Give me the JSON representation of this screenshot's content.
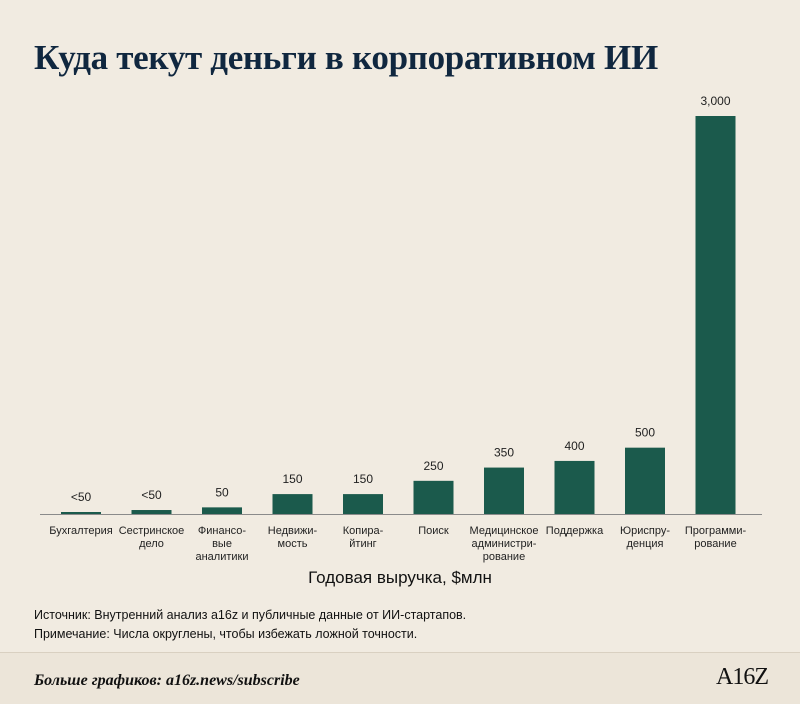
{
  "chart_data": {
    "type": "bar",
    "title": "Куда текут деньги в корпоративном ИИ",
    "xlabel": "Годовая выручка, $млн",
    "ylim": [
      0,
      3000
    ],
    "grid": false,
    "categories": [
      [
        "Бухгалтерия"
      ],
      [
        "Сестринское",
        "дело"
      ],
      [
        "Финансо-",
        "вые",
        "аналитики"
      ],
      [
        "Недвижи-",
        "мость"
      ],
      [
        "Копира-",
        "йтинг"
      ],
      [
        "Поиск"
      ],
      [
        "Медицинское",
        "администри-",
        "рование"
      ],
      [
        "Поддержка"
      ],
      [
        "Юриспру-",
        "денция"
      ],
      [
        "Программи-",
        "рование"
      ]
    ],
    "values": [
      12,
      30,
      50,
      150,
      150,
      250,
      350,
      400,
      500,
      3000
    ],
    "value_labels": [
      "<50",
      "<50",
      "50",
      "150",
      "150",
      "250",
      "350",
      "400",
      "500",
      "3,000"
    ]
  },
  "notes": {
    "source": "Источник: Внутренний анализ a16z и публичные данные от ИИ-стартапов.",
    "note": "Примечание: Числа округлены, чтобы избежать ложной точности."
  },
  "footer": {
    "text": "Больше графиков: a16z.news/subscribe",
    "logo": "A16Z"
  },
  "colors": {
    "bar": "#1b5a4c",
    "background": "#f1ebe1",
    "title": "#10273f"
  }
}
